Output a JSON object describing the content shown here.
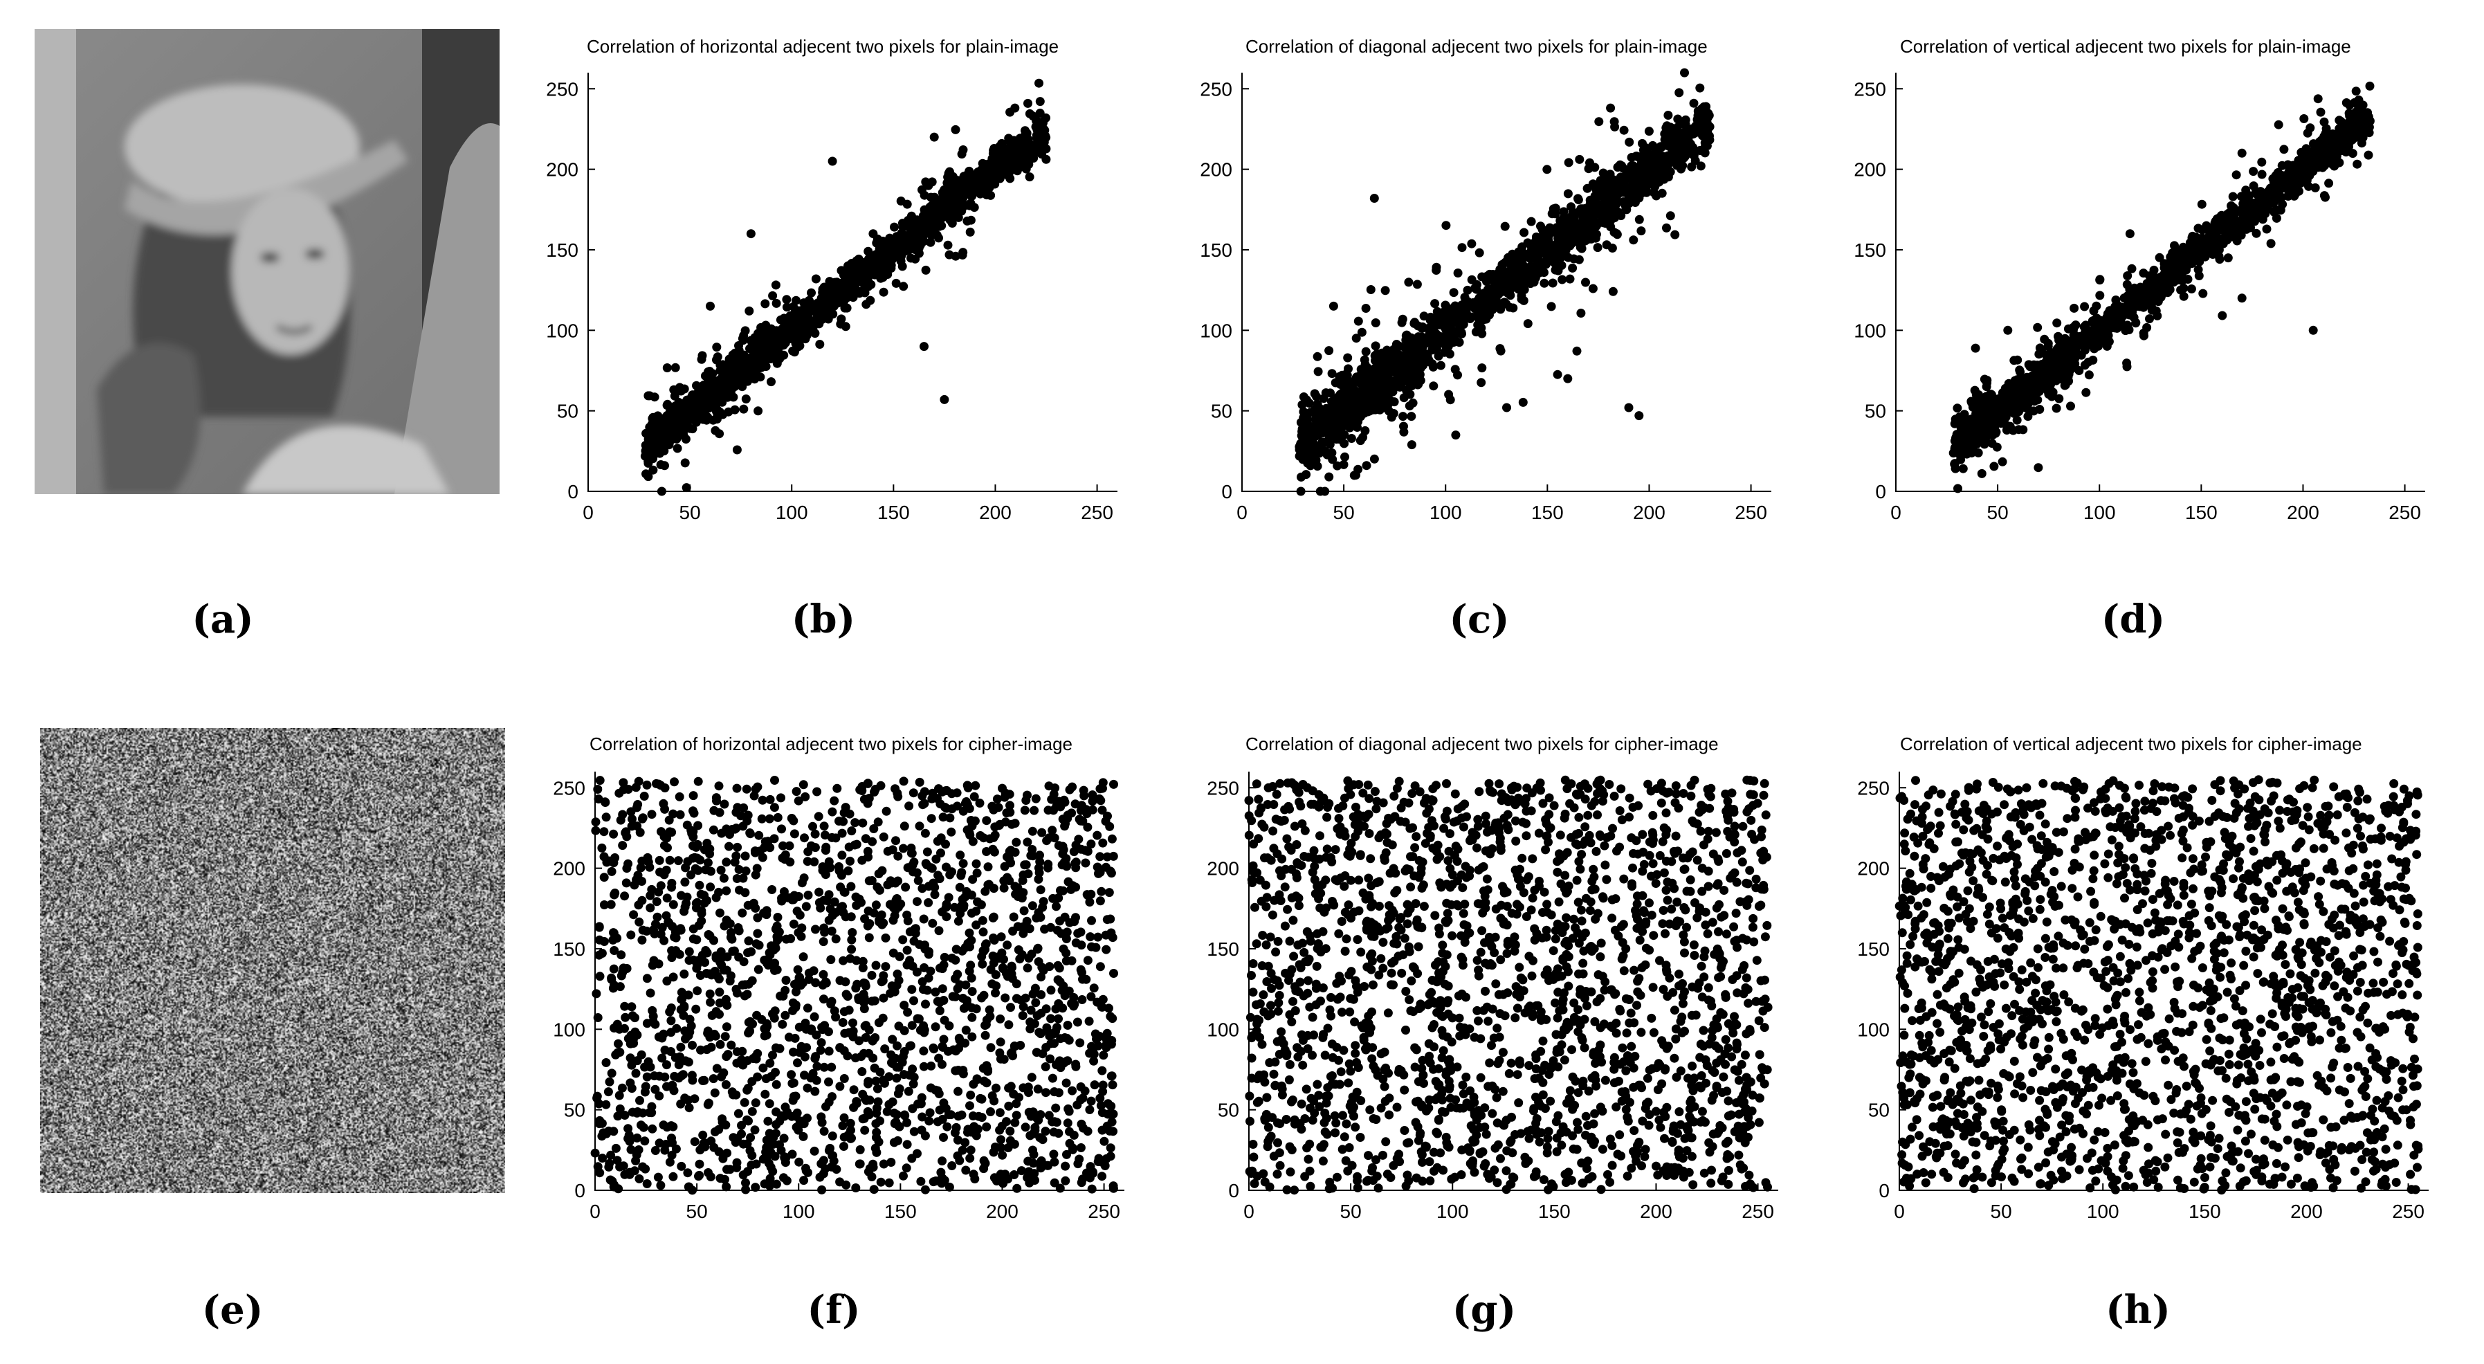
{
  "panels": {
    "labels": [
      "(a)",
      "(b)",
      "(c)",
      "(d)",
      "(e)",
      "(f)",
      "(g)",
      "(h)"
    ]
  },
  "images": {
    "plain": "grayscale-portrait-photo",
    "cipher": "grayscale-noise-image"
  },
  "chart_data": [
    {
      "type": "scatter",
      "title": "Correlation of horizontal adjecent two pixels for plain-image",
      "xlim": [
        0,
        260
      ],
      "ylim": [
        0,
        260
      ],
      "xticks": [
        0,
        50,
        100,
        150,
        200,
        250
      ],
      "yticks": [
        0,
        50,
        100,
        150,
        200,
        250
      ],
      "distribution": "correlated",
      "range": [
        28,
        225
      ],
      "spread": 6,
      "outliers": [
        [
          175,
          57
        ],
        [
          165,
          90
        ],
        [
          120,
          205
        ],
        [
          80,
          160
        ],
        [
          140,
          160
        ],
        [
          60,
          115
        ],
        [
          170,
          220
        ]
      ],
      "grid": false
    },
    {
      "type": "scatter",
      "title": "Correlation of diagonal adjecent two pixels for plain-image",
      "xlim": [
        0,
        260
      ],
      "ylim": [
        0,
        260
      ],
      "xticks": [
        0,
        50,
        100,
        150,
        200,
        250
      ],
      "yticks": [
        0,
        50,
        100,
        150,
        200,
        250
      ],
      "distribution": "correlated",
      "range": [
        28,
        230
      ],
      "spread": 9,
      "outliers": [
        [
          65,
          182
        ],
        [
          130,
          52
        ],
        [
          190,
          52
        ],
        [
          195,
          47
        ],
        [
          105,
          35
        ],
        [
          85,
          90
        ],
        [
          160,
          70
        ],
        [
          45,
          115
        ]
      ],
      "grid": false
    },
    {
      "type": "scatter",
      "title": "Correlation of vertical adjecent two pixels for plain-image",
      "xlim": [
        0,
        260
      ],
      "ylim": [
        0,
        260
      ],
      "xticks": [
        0,
        50,
        100,
        150,
        200,
        250
      ],
      "yticks": [
        0,
        50,
        100,
        150,
        200,
        250
      ],
      "distribution": "correlated",
      "range": [
        28,
        233
      ],
      "spread": 6,
      "outliers": [
        [
          170,
          120
        ],
        [
          205,
          100
        ],
        [
          170,
          210
        ],
        [
          115,
          160
        ],
        [
          90,
          75
        ],
        [
          55,
          100
        ]
      ],
      "grid": false
    },
    {
      "type": "scatter",
      "title": "Correlation of horizontal adjecent two pixels for cipher-image",
      "xlim": [
        0,
        260
      ],
      "ylim": [
        0,
        260
      ],
      "xticks": [
        0,
        50,
        100,
        150,
        200,
        250
      ],
      "yticks": [
        0,
        50,
        100,
        150,
        200,
        250
      ],
      "distribution": "uniform",
      "range": [
        0,
        255
      ],
      "grid": false
    },
    {
      "type": "scatter",
      "title": "Correlation of diagonal adjecent two pixels for cipher-image",
      "xlim": [
        0,
        260
      ],
      "ylim": [
        0,
        260
      ],
      "xticks": [
        0,
        50,
        100,
        150,
        200,
        250
      ],
      "yticks": [
        0,
        50,
        100,
        150,
        200,
        250
      ],
      "distribution": "uniform",
      "range": [
        0,
        255
      ],
      "grid": false
    },
    {
      "type": "scatter",
      "title": "Correlation of vertical adjecent two pixels for cipher-image",
      "xlim": [
        0,
        260
      ],
      "ylim": [
        0,
        260
      ],
      "xticks": [
        0,
        50,
        100,
        150,
        200,
        250
      ],
      "yticks": [
        0,
        50,
        100,
        150,
        200,
        250
      ],
      "distribution": "uniform",
      "range": [
        0,
        255
      ],
      "grid": false
    }
  ]
}
